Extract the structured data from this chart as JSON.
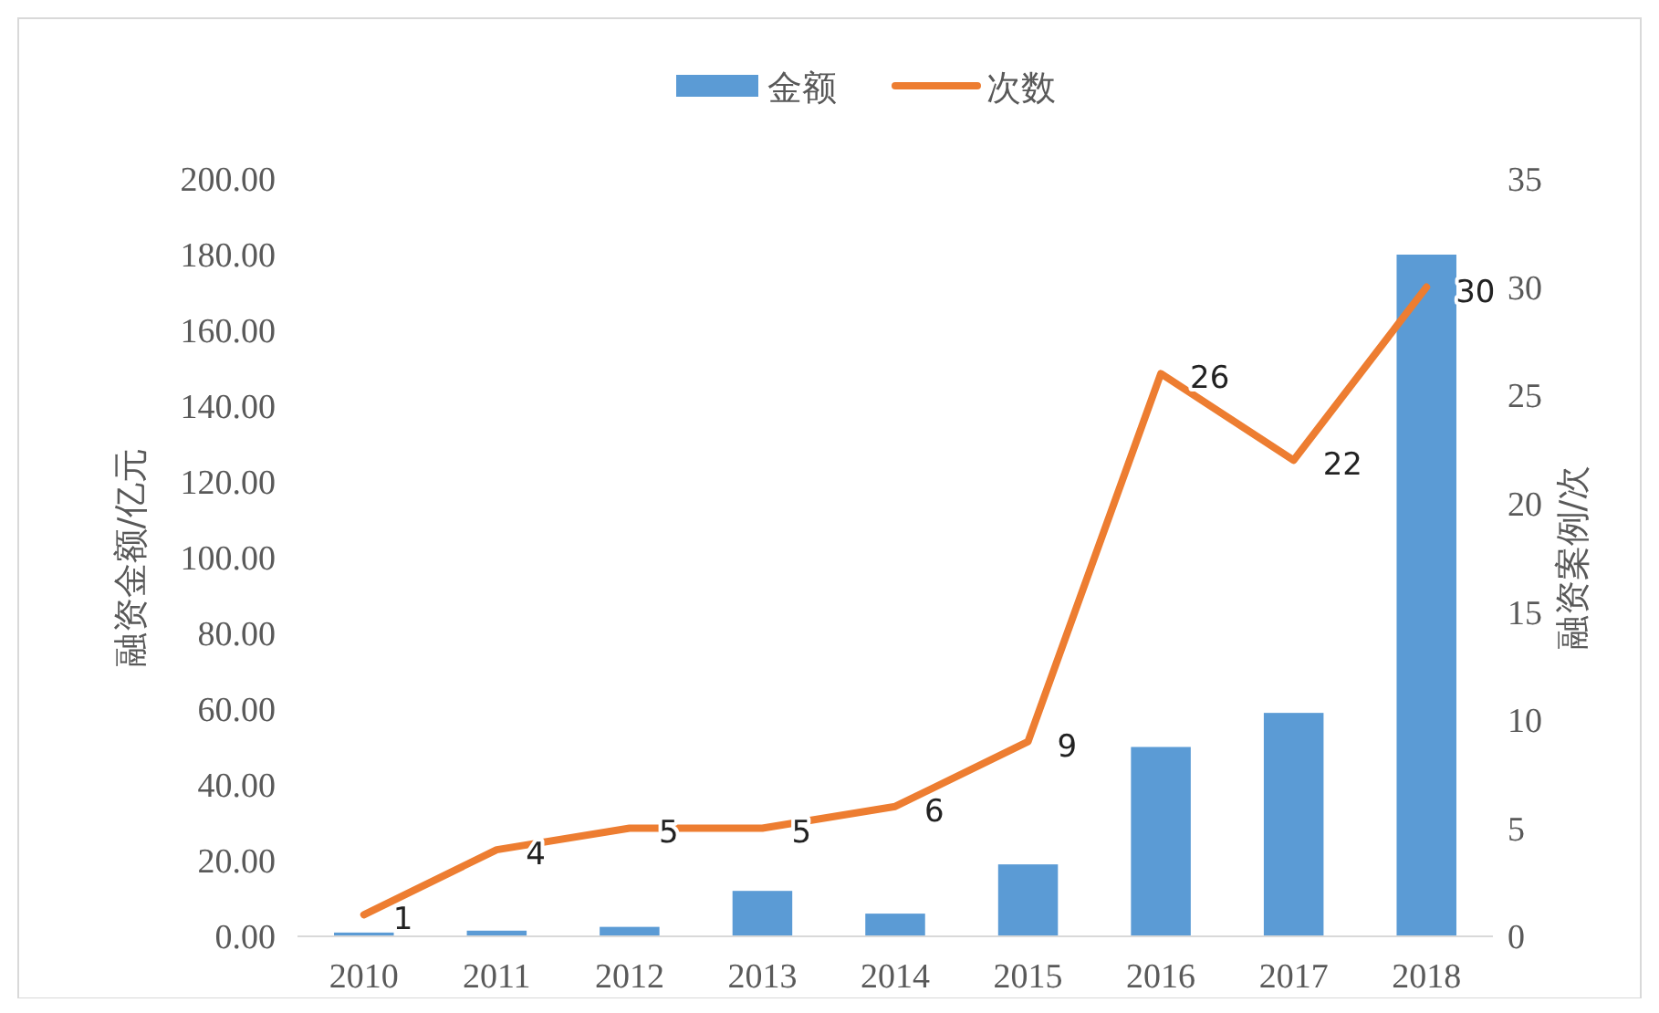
{
  "chart_data": {
    "type": "bar",
    "categories": [
      "2010",
      "2011",
      "2012",
      "2013",
      "2014",
      "2015",
      "2016",
      "2017",
      "2018"
    ],
    "ylabel": "融资金额/亿元",
    "y2label": "融资案例/次",
    "ylim": [
      0,
      200
    ],
    "yticks": [
      {
        "value": 0,
        "label": "0.00"
      },
      {
        "value": 20,
        "label": "20.00"
      },
      {
        "value": 40,
        "label": "40.00"
      },
      {
        "value": 60,
        "label": "60.00"
      },
      {
        "value": 80,
        "label": "80.00"
      },
      {
        "value": 100,
        "label": "100.00"
      },
      {
        "value": 120,
        "label": "120.00"
      },
      {
        "value": 140,
        "label": "140.00"
      },
      {
        "value": 160,
        "label": "160.00"
      },
      {
        "value": 180,
        "label": "180.00"
      },
      {
        "value": 200,
        "label": "200.00"
      }
    ],
    "y2lim": [
      0,
      35
    ],
    "y2ticks": [
      0,
      5,
      10,
      15,
      20,
      25,
      30,
      35
    ],
    "legend": "top",
    "grid": false,
    "series": [
      {
        "name": "金额",
        "color": "#5b9bd5",
        "values": [
          1,
          1.5,
          2.5,
          12,
          6,
          19,
          50,
          59,
          180
        ]
      },
      {
        "name": "次数",
        "type": "line",
        "axis": "y2",
        "color": "#ed7d31",
        "values": [
          1,
          4,
          5,
          5,
          6,
          9,
          26,
          22,
          30
        ],
        "value_labels": [
          "1",
          "4",
          "5",
          "5",
          "6",
          "9",
          "26",
          "22",
          "30"
        ]
      }
    ]
  }
}
